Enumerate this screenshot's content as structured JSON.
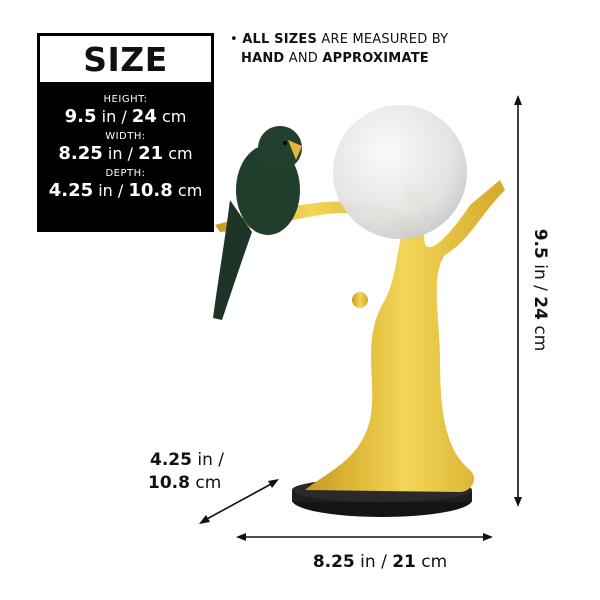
{
  "size_box": {
    "title": "SIZE",
    "height_label": "HEIGHT:",
    "height_in": "9.5",
    "height_in_unit": "in /",
    "height_cm": "24",
    "height_cm_unit": "cm",
    "width_label": "WIDTH:",
    "width_in": "8.25",
    "width_in_unit": "in /",
    "width_cm": "21",
    "width_cm_unit": "cm",
    "depth_label": "DEPTH:",
    "depth_in": "4.25",
    "depth_in_unit": "in /",
    "depth_cm": "10.8",
    "depth_cm_unit": "cm"
  },
  "note": {
    "bullet": "•",
    "bold1": "ALL SIZES",
    "text1": " ARE MEASURED BY",
    "bold2": "HAND",
    "text2": " AND ",
    "bold3": "APPROXIMATE"
  },
  "dimensions": {
    "height": {
      "in": "9.5",
      "in_unit": " in / ",
      "cm": "24",
      "cm_unit": " cm"
    },
    "width": {
      "in": "8.25",
      "in_unit": " in / ",
      "cm": "21",
      "cm_unit": " cm"
    },
    "depth": {
      "in": "4.25",
      "in_unit": " in /",
      "cm": "10.8",
      "cm_unit": " cm"
    }
  },
  "colors": {
    "gold": "#e6c23a",
    "parrot": "#1f3a2a",
    "base": "#1a1a1a",
    "sphere": "#e4e4e4"
  }
}
